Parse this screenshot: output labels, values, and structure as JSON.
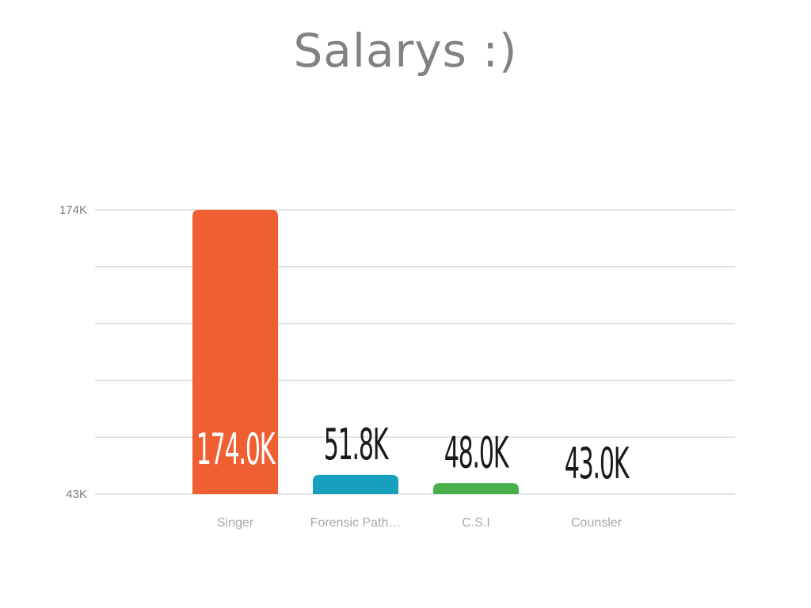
{
  "chart_data": {
    "type": "bar",
    "title": "Salarys :)",
    "xlabel": "",
    "ylabel": "",
    "categories": [
      "Singer",
      "Forensic Path…",
      "C.S.I",
      "Counsler"
    ],
    "values": [
      174.0,
      51.8,
      48.0,
      43.0
    ],
    "value_labels": [
      "174.0K",
      "51.8K",
      "48.0K",
      "43.0K"
    ],
    "colors": [
      "#f05f32",
      "#17a0bd",
      "#47b04b",
      "#9b59b6"
    ],
    "ylim": [
      43,
      174
    ],
    "yticks": [
      {
        "value": 174,
        "label": "174K"
      },
      {
        "value": 43,
        "label": "43K"
      }
    ],
    "grid": true,
    "grid_lines": 5,
    "legend": "none"
  }
}
